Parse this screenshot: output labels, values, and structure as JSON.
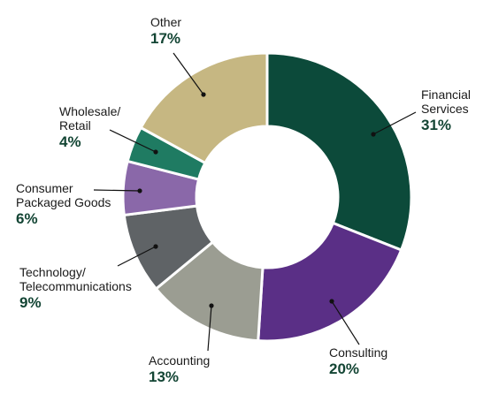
{
  "chart_data": {
    "type": "pie",
    "donut": true,
    "unit": "%",
    "slices": [
      {
        "lines": [
          "Financial",
          "Services"
        ],
        "value": 31,
        "label": "31%",
        "color": "#0c4a3a"
      },
      {
        "lines": [
          "Consulting"
        ],
        "value": 20,
        "label": "20%",
        "color": "#5a2f86"
      },
      {
        "lines": [
          "Accounting"
        ],
        "value": 13,
        "label": "13%",
        "color": "#9b9d92"
      },
      {
        "lines": [
          "Technology/",
          "Telecommunications"
        ],
        "value": 9,
        "label": "9%",
        "color": "#5f6366"
      },
      {
        "lines": [
          "Consumer",
          "Packaged Goods"
        ],
        "value": 6,
        "label": "6%",
        "color": "#8a68a9"
      },
      {
        "lines": [
          "Wholesale/",
          "Retail"
        ],
        "value": 4,
        "label": "4%",
        "color": "#1f7b62"
      },
      {
        "lines": [
          "Other"
        ],
        "value": 17,
        "label": "17%",
        "color": "#c6b782"
      }
    ],
    "label_color": "#1a1a1a",
    "percent_color": "#134534",
    "leader_color": "#111111"
  }
}
